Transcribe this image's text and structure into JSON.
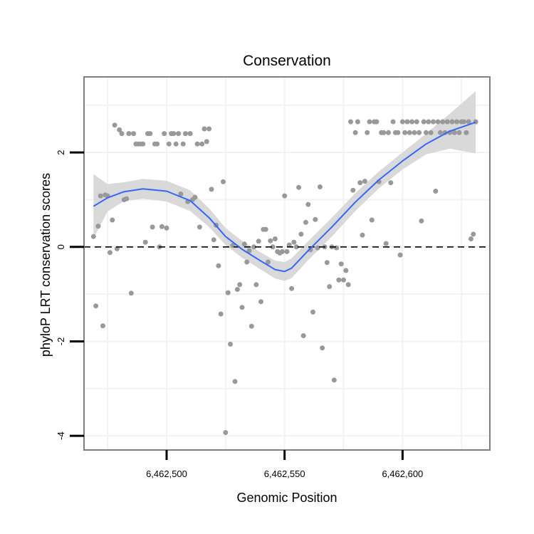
{
  "chart_data": {
    "type": "scatter",
    "title": "Conservation",
    "xlabel": "Genomic Position",
    "ylabel": "phyloP LRT conservation scores",
    "xlim": [
      6462465,
      6462637
    ],
    "ylim": [
      -4.3,
      3.6
    ],
    "x_ticks": [
      6462500,
      6462550,
      6462600
    ],
    "x_tick_labels": [
      "6,462,500",
      "6,462,550",
      "6,462,600"
    ],
    "y_ticks": [
      -4,
      -2,
      0,
      2
    ],
    "y_tick_labels": [
      "-4",
      "-2",
      "0",
      "2"
    ],
    "reference_line": {
      "y": 0,
      "style": "dashed"
    },
    "colors": {
      "points": "#999999",
      "smooth": "#3366ff",
      "ribbon": "#d9d9d9",
      "grid": "#f2f2f2",
      "border": "#7f7f7f"
    },
    "series": [
      {
        "name": "scores",
        "points": [
          [
            6462469,
            0.22
          ],
          [
            6462470,
            -1.25
          ],
          [
            6462471,
            0.44
          ],
          [
            6462472,
            1.08
          ],
          [
            6462473,
            -1.67
          ],
          [
            6462474,
            1.1
          ],
          [
            6462475,
            1.08
          ],
          [
            6462476,
            -0.12
          ],
          [
            6462477,
            0.57
          ],
          [
            6462478,
            2.58
          ],
          [
            6462479,
            -0.04
          ],
          [
            6462480,
            2.48
          ],
          [
            6462481,
            2.4
          ],
          [
            6462482,
            1.0
          ],
          [
            6462483,
            1.02
          ],
          [
            6462484,
            2.4
          ],
          [
            6462485,
            -0.98
          ],
          [
            6462486,
            2.4
          ],
          [
            6462487,
            2.18
          ],
          [
            6462488,
            2.18
          ],
          [
            6462489,
            2.18
          ],
          [
            6462490,
            2.18
          ],
          [
            6462491,
            0.1
          ],
          [
            6462492,
            2.4
          ],
          [
            6462493,
            2.4
          ],
          [
            6462494,
            0.42
          ],
          [
            6462495,
            2.18
          ],
          [
            6462496,
            2.18
          ],
          [
            6462497,
            0.0
          ],
          [
            6462498,
            0.43
          ],
          [
            6462499,
            2.4
          ],
          [
            6462500,
            0.4
          ],
          [
            6462501,
            2.18
          ],
          [
            6462502,
            2.4
          ],
          [
            6462503,
            2.4
          ],
          [
            6462504,
            2.18
          ],
          [
            6462505,
            2.4
          ],
          [
            6462506,
            1.12
          ],
          [
            6462507,
            2.18
          ],
          [
            6462508,
            2.4
          ],
          [
            6462509,
            0.96
          ],
          [
            6462510,
            2.4
          ],
          [
            6462511,
            1.0
          ],
          [
            6462512,
            1.05
          ],
          [
            6462513,
            2.18
          ],
          [
            6462514,
            0.42
          ],
          [
            6462515,
            2.18
          ],
          [
            6462516,
            2.5
          ],
          [
            6462517,
            2.23
          ],
          [
            6462518,
            2.5
          ],
          [
            6462519,
            1.22
          ],
          [
            6462520,
            0.15
          ],
          [
            6462521,
            0.46
          ],
          [
            6462522,
            -0.4
          ],
          [
            6462523,
            -1.42
          ],
          [
            6462524,
            1.38
          ],
          [
            6462525,
            -3.93
          ],
          [
            6462526,
            -0.97
          ],
          [
            6462527,
            -2.06
          ],
          [
            6462528,
            0.03
          ],
          [
            6462529,
            -2.85
          ],
          [
            6462530,
            -0.9
          ],
          [
            6462531,
            -0.8
          ],
          [
            6462532,
            -1.28
          ],
          [
            6462533,
            0.06
          ],
          [
            6462534,
            -0.32
          ],
          [
            6462535,
            -0.08
          ],
          [
            6462536,
            -1.68
          ],
          [
            6462537,
            0.0
          ],
          [
            6462538,
            -0.8
          ],
          [
            6462539,
            0.12
          ],
          [
            6462540,
            -1.16
          ],
          [
            6462541,
            0.37
          ],
          [
            6462542,
            0.37
          ],
          [
            6462543,
            -0.32
          ],
          [
            6462544,
            0.13
          ],
          [
            6462545,
            0.0
          ],
          [
            6462546,
            0.17
          ],
          [
            6462547,
            -0.1
          ],
          [
            6462548,
            -0.13
          ],
          [
            6462549,
            -0.1
          ],
          [
            6462550,
            1.08
          ],
          [
            6462551,
            -0.1
          ],
          [
            6462552,
            0.04
          ],
          [
            6462553,
            -0.88
          ],
          [
            6462554,
            0.1
          ],
          [
            6462555,
            0.0
          ],
          [
            6462556,
            1.26
          ],
          [
            6462557,
            0.27
          ],
          [
            6462558,
            -1.88
          ],
          [
            6462559,
            0.52
          ],
          [
            6462560,
            0.9
          ],
          [
            6462561,
            -0.06
          ],
          [
            6462562,
            -1.38
          ],
          [
            6462563,
            0.58
          ],
          [
            6462564,
            -0.02
          ],
          [
            6462565,
            1.27
          ],
          [
            6462566,
            -2.14
          ],
          [
            6462567,
            0.0
          ],
          [
            6462568,
            -0.33
          ],
          [
            6462569,
            -0.84
          ],
          [
            6462570,
            0.0
          ],
          [
            6462571,
            -2.82
          ],
          [
            6462572,
            -0.02
          ],
          [
            6462573,
            -0.7
          ],
          [
            6462574,
            -0.36
          ],
          [
            6462575,
            -0.7
          ],
          [
            6462576,
            -0.5
          ],
          [
            6462577,
            -0.8
          ],
          [
            6462578,
            2.65
          ],
          [
            6462579,
            1.2
          ],
          [
            6462580,
            2.42
          ],
          [
            6462581,
            2.65
          ],
          [
            6462582,
            1.36
          ],
          [
            6462583,
            0.25
          ],
          [
            6462584,
            1.39
          ],
          [
            6462585,
            2.42
          ],
          [
            6462586,
            2.65
          ],
          [
            6462587,
            0.57
          ],
          [
            6462588,
            2.65
          ],
          [
            6462589,
            2.65
          ],
          [
            6462590,
            1.38
          ],
          [
            6462591,
            2.42
          ],
          [
            6462592,
            2.42
          ],
          [
            6462593,
            0.07
          ],
          [
            6462594,
            2.42
          ],
          [
            6462595,
            1.36
          ],
          [
            6462596,
            2.65
          ],
          [
            6462597,
            2.42
          ],
          [
            6462598,
            2.42
          ],
          [
            6462599,
            -0.17
          ],
          [
            6462600,
            2.65
          ],
          [
            6462601,
            2.42
          ],
          [
            6462602,
            2.65
          ],
          [
            6462603,
            2.42
          ],
          [
            6462604,
            2.65
          ],
          [
            6462605,
            2.42
          ],
          [
            6462606,
            2.65
          ],
          [
            6462607,
            2.42
          ],
          [
            6462608,
            0.55
          ],
          [
            6462609,
            2.65
          ],
          [
            6462610,
            2.42
          ],
          [
            6462611,
            2.65
          ],
          [
            6462612,
            2.42
          ],
          [
            6462613,
            2.65
          ],
          [
            6462614,
            1.18
          ],
          [
            6462615,
            2.65
          ],
          [
            6462616,
            2.42
          ],
          [
            6462617,
            2.65
          ],
          [
            6462618,
            2.42
          ],
          [
            6462619,
            2.65
          ],
          [
            6462620,
            2.42
          ],
          [
            6462621,
            2.65
          ],
          [
            6462622,
            2.42
          ],
          [
            6462623,
            2.65
          ],
          [
            6462624,
            2.42
          ],
          [
            6462625,
            2.65
          ],
          [
            6462626,
            2.65
          ],
          [
            6462627,
            2.42
          ],
          [
            6462628,
            2.65
          ],
          [
            6462629,
            0.17
          ],
          [
            6462630,
            0.27
          ],
          [
            6462631,
            2.65
          ]
        ]
      }
    ],
    "smooth": {
      "x": [
        6462469,
        6462475,
        6462482,
        6462490,
        6462500,
        6462510,
        6462518,
        6462525,
        6462532,
        6462540,
        6462546,
        6462550,
        6462553,
        6462560,
        6462570,
        6462580,
        6462590,
        6462600,
        6462610,
        6462620,
        6462631
      ],
      "y": [
        0.86,
        1.04,
        1.17,
        1.23,
        1.18,
        0.98,
        0.62,
        0.22,
        -0.05,
        -0.3,
        -0.48,
        -0.52,
        -0.45,
        -0.08,
        0.42,
        0.95,
        1.42,
        1.82,
        2.18,
        2.45,
        2.64
      ],
      "lower": [
        0.18,
        0.75,
        0.97,
        1.02,
        0.96,
        0.76,
        0.42,
        0.04,
        -0.23,
        -0.48,
        -0.67,
        -0.72,
        -0.66,
        -0.28,
        0.22,
        0.76,
        1.24,
        1.64,
        1.96,
        2.08,
        1.98
      ],
      "upper": [
        1.54,
        1.33,
        1.37,
        1.44,
        1.4,
        1.2,
        0.82,
        0.4,
        0.13,
        -0.12,
        -0.29,
        -0.32,
        -0.24,
        0.12,
        0.62,
        1.14,
        1.6,
        2.0,
        2.4,
        2.82,
        3.3
      ]
    }
  }
}
